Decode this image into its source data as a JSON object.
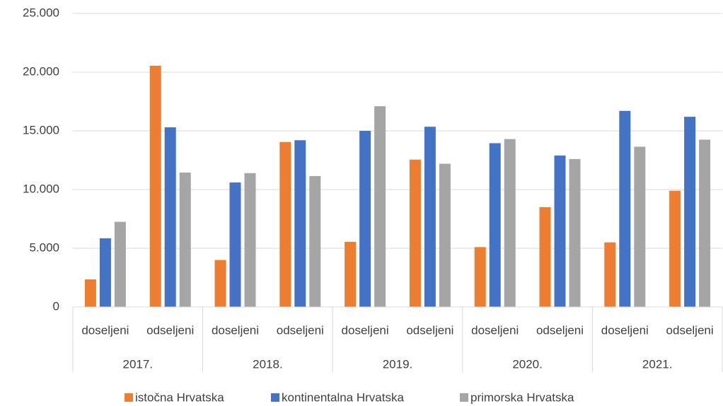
{
  "chart_data": {
    "type": "bar",
    "categories": [
      "doseljeni",
      "odseljeni",
      "doseljeni",
      "odseljeni",
      "doseljeni",
      "odseljeni",
      "doseljeni",
      "odseljeni",
      "doseljeni",
      "odseljeni"
    ],
    "groups": [
      "2017.",
      "2018.",
      "2019.",
      "2020.",
      "2021."
    ],
    "series": [
      {
        "name": "istočna Hrvatska",
        "color": "#ED7D31",
        "values": [
          2350,
          20550,
          4000,
          14050,
          5550,
          12550,
          5100,
          8500,
          5500,
          9900
        ]
      },
      {
        "name": "kontinentalna Hrvatska",
        "color": "#4472C4",
        "values": [
          5850,
          15300,
          10600,
          14200,
          15000,
          15350,
          13950,
          12900,
          16700,
          16200
        ]
      },
      {
        "name": "primorska Hrvatska",
        "color": "#A5A5A5",
        "values": [
          7250,
          11450,
          11400,
          11150,
          17100,
          12200,
          14300,
          12600,
          13650,
          14250
        ]
      }
    ],
    "ylim": [
      0,
      25000
    ],
    "yticks": [
      0,
      {
        "value": 5000,
        "label": "5.000"
      },
      {
        "value": 10000,
        "label": "10.000"
      },
      {
        "value": 15000,
        "label": "15.000"
      },
      {
        "value": 20000,
        "label": "20.000"
      },
      {
        "value": 25000,
        "label": "25.000"
      }
    ],
    "grid": true,
    "legend": "bottom"
  }
}
